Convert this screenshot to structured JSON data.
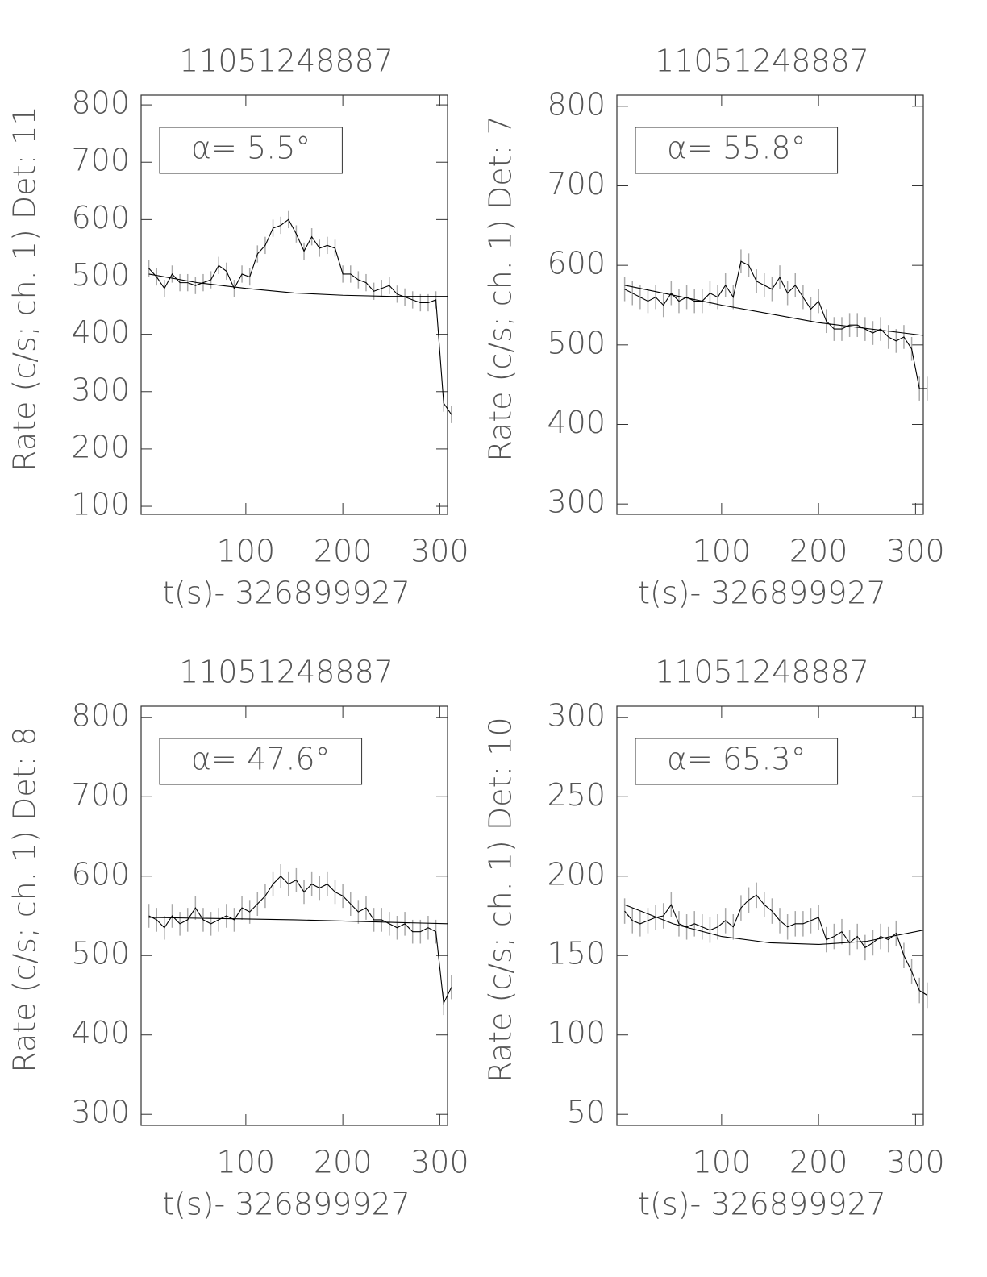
{
  "chart_data": [
    {
      "type": "line",
      "title": "11051248887",
      "xlabel": "t(s)- 326899927",
      "ylabel": "Rate (c/s; ch. 1) Det: 11",
      "annotation": "α= 5.5°",
      "xlim": [
        -8,
        308
      ],
      "xticks": [
        100,
        200,
        300
      ],
      "ylim": [
        86,
        817
      ],
      "yticks": [
        100,
        200,
        300,
        400,
        500,
        600,
        700,
        800
      ],
      "x": [
        0,
        8,
        16,
        24,
        32,
        40,
        48,
        56,
        64,
        72,
        80,
        88,
        96,
        104,
        112,
        120,
        128,
        136,
        144,
        152,
        160,
        168,
        176,
        184,
        192,
        200,
        208,
        216,
        224,
        232,
        240,
        248,
        256,
        264,
        272,
        280,
        288,
        296,
        304,
        312
      ],
      "series": [
        {
          "color": "#000000",
          "yerr": 15,
          "values": [
            515,
            500,
            480,
            505,
            490,
            490,
            485,
            490,
            495,
            520,
            510,
            480,
            505,
            500,
            540,
            555,
            585,
            590,
            600,
            575,
            545,
            570,
            550,
            555,
            550,
            505,
            505,
            495,
            490,
            475,
            480,
            485,
            470,
            465,
            460,
            455,
            455,
            460,
            280,
            260
          ]
        },
        {
          "color": "#000000",
          "x": [
            0,
            50,
            100,
            150,
            200,
            250,
            308
          ],
          "values": [
            505,
            490,
            480,
            472,
            468,
            466,
            466
          ]
        }
      ]
    },
    {
      "type": "line",
      "title": "11051248887",
      "xlabel": "t(s)- 326899927",
      "ylabel": "Rate (c/s; ch. 1) Det: 7",
      "annotation": "α= 55.8°",
      "xlim": [
        -8,
        308
      ],
      "xticks": [
        100,
        200,
        300
      ],
      "ylim": [
        287,
        814
      ],
      "yticks": [
        300,
        400,
        500,
        600,
        700,
        800
      ],
      "x": [
        0,
        8,
        16,
        24,
        32,
        40,
        48,
        56,
        64,
        72,
        80,
        88,
        96,
        104,
        112,
        120,
        128,
        136,
        144,
        152,
        160,
        168,
        176,
        184,
        192,
        200,
        208,
        216,
        224,
        232,
        240,
        248,
        256,
        264,
        272,
        280,
        288,
        296,
        304,
        312
      ],
      "series": [
        {
          "color": "#000000",
          "yerr": 15,
          "values": [
            570,
            565,
            560,
            555,
            560,
            550,
            565,
            555,
            560,
            555,
            555,
            565,
            560,
            575,
            560,
            605,
            600,
            580,
            575,
            570,
            585,
            565,
            575,
            560,
            545,
            555,
            530,
            520,
            520,
            525,
            525,
            520,
            515,
            520,
            510,
            505,
            510,
            495,
            445,
            445
          ]
        },
        {
          "color": "#000000",
          "x": [
            0,
            100,
            200,
            308
          ],
          "values": [
            575,
            550,
            528,
            512
          ]
        }
      ]
    },
    {
      "type": "line",
      "title": "11051248887",
      "xlabel": "t(s)- 326899927",
      "ylabel": "Rate (c/s; ch. 1) Det: 8",
      "annotation": "α= 47.6°",
      "xlim": [
        -8,
        308
      ],
      "xticks": [
        100,
        200,
        300
      ],
      "ylim": [
        286,
        814
      ],
      "yticks": [
        300,
        400,
        500,
        600,
        700,
        800
      ],
      "x": [
        0,
        8,
        16,
        24,
        32,
        40,
        48,
        56,
        64,
        72,
        80,
        88,
        96,
        104,
        112,
        120,
        128,
        136,
        144,
        152,
        160,
        168,
        176,
        184,
        192,
        200,
        208,
        216,
        224,
        232,
        240,
        248,
        256,
        264,
        272,
        280,
        288,
        296,
        304,
        312
      ],
      "series": [
        {
          "color": "#000000",
          "yerr": 15,
          "values": [
            550,
            545,
            535,
            550,
            540,
            545,
            560,
            545,
            540,
            545,
            550,
            545,
            560,
            555,
            565,
            575,
            590,
            600,
            590,
            595,
            580,
            590,
            585,
            590,
            580,
            575,
            565,
            555,
            560,
            545,
            545,
            540,
            535,
            540,
            530,
            530,
            535,
            530,
            440,
            460
          ]
        },
        {
          "color": "#000000",
          "x": [
            0,
            150,
            308
          ],
          "values": [
            548,
            545,
            540
          ]
        }
      ]
    },
    {
      "type": "line",
      "title": "11051248887",
      "xlabel": "t(s)- 326899927",
      "ylabel": "Rate (c/s; ch. 1) Det: 10",
      "annotation": "α= 65.3°",
      "xlim": [
        -8,
        308
      ],
      "xticks": [
        100,
        200,
        300
      ],
      "ylim": [
        43,
        307
      ],
      "yticks": [
        50,
        100,
        150,
        200,
        250,
        300
      ],
      "x": [
        0,
        8,
        16,
        24,
        32,
        40,
        48,
        56,
        64,
        72,
        80,
        88,
        96,
        104,
        112,
        120,
        128,
        136,
        144,
        152,
        160,
        168,
        176,
        184,
        192,
        200,
        208,
        216,
        224,
        232,
        240,
        248,
        256,
        264,
        272,
        280,
        288,
        296,
        304,
        312
      ],
      "series": [
        {
          "color": "#000000",
          "yerr": 8,
          "values": [
            178,
            172,
            170,
            172,
            174,
            175,
            182,
            170,
            168,
            170,
            168,
            166,
            168,
            172,
            168,
            180,
            185,
            188,
            182,
            178,
            172,
            168,
            170,
            170,
            172,
            174,
            160,
            162,
            165,
            158,
            162,
            155,
            158,
            162,
            160,
            164,
            150,
            140,
            128,
            125
          ]
        },
        {
          "color": "#000000",
          "x": [
            0,
            50,
            100,
            150,
            200,
            250,
            308
          ],
          "values": [
            182,
            170,
            162,
            158,
            157,
            159,
            166
          ]
        }
      ]
    }
  ]
}
